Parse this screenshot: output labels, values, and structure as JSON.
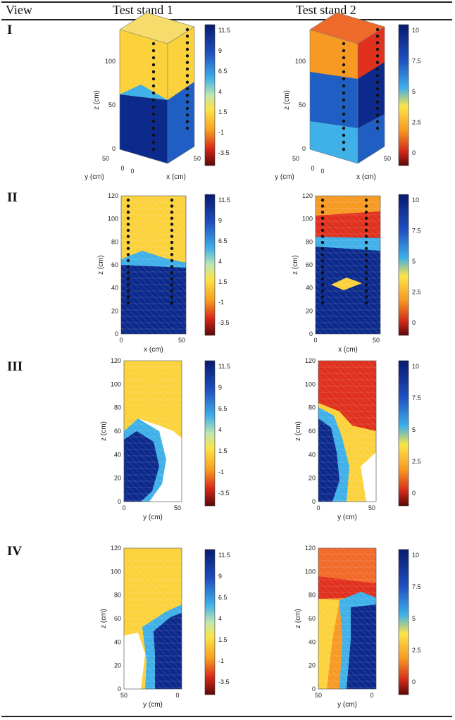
{
  "table": {
    "header": {
      "view": "View",
      "col1": "Test stand 1",
      "col2": "Test stand 2"
    },
    "rows": [
      {
        "label": "I",
        "stand1": {
          "z_label": "z (cm)",
          "y_label": "y (cm)",
          "x_label": "x (cm)",
          "z_ticks": [
            "100",
            "50",
            "0"
          ],
          "y_ticks": [
            "50",
            "0"
          ],
          "x_ticks": [
            "0",
            "50"
          ],
          "colorbar_ticks": [
            "11.5",
            "9",
            "6.5",
            "4",
            "1.5",
            "-1",
            "-3.5"
          ]
        },
        "stand2": {
          "z_label": "z (cm)",
          "y_label": "y (cm)",
          "x_label": "x (cm)",
          "z_ticks": [
            "100",
            "50",
            "0"
          ],
          "y_ticks": [
            "50",
            "0"
          ],
          "x_ticks": [
            "0",
            "50"
          ],
          "colorbar_ticks": [
            "10",
            "7.5",
            "5",
            "2.5",
            "0"
          ]
        }
      },
      {
        "label": "II",
        "stand1": {
          "z_label": "z (cm)",
          "x_label": "x (cm)",
          "z_ticks": [
            "120",
            "100",
            "80",
            "60",
            "40",
            "20",
            "0"
          ],
          "x_ticks": [
            "0",
            "50"
          ],
          "colorbar_ticks": [
            "11.5",
            "9",
            "6.5",
            "4",
            "1.5",
            "-1",
            "-3.5"
          ]
        },
        "stand2": {
          "z_label": "z (cm)",
          "x_label": "x (cm)",
          "z_ticks": [
            "120",
            "100",
            "80",
            "60",
            "40",
            "20",
            "0"
          ],
          "x_ticks": [
            "0",
            "50"
          ],
          "colorbar_ticks": [
            "10",
            "7.5",
            "5",
            "2.5",
            "0"
          ]
        }
      },
      {
        "label": "III",
        "stand1": {
          "z_label": "z (cm)",
          "x_label": "y (cm)",
          "z_ticks": [
            "120",
            "100",
            "80",
            "60",
            "40",
            "20",
            "0"
          ],
          "x_ticks": [
            "0",
            "50"
          ],
          "colorbar_ticks": [
            "11.5",
            "9",
            "6.5",
            "4",
            "1.5",
            "-1",
            "-3.5"
          ]
        },
        "stand2": {
          "z_label": "z (cm)",
          "x_label": "y (cm)",
          "z_ticks": [
            "120",
            "100",
            "80",
            "60",
            "40",
            "20",
            "0"
          ],
          "x_ticks": [
            "0",
            "50"
          ],
          "colorbar_ticks": [
            "10",
            "7.5",
            "5",
            "2.5",
            "0"
          ]
        }
      },
      {
        "label": "IV",
        "stand1": {
          "z_label": "z (cm)",
          "x_label": "y (cm)",
          "z_ticks": [
            "120",
            "100",
            "80",
            "60",
            "40",
            "20",
            "0"
          ],
          "x_ticks": [
            "50",
            "0"
          ],
          "colorbar_ticks": [
            "11.5",
            "9",
            "6.5",
            "4",
            "1.5",
            "-1",
            "-3.5"
          ]
        },
        "stand2": {
          "z_label": "z (cm)",
          "x_label": "y (cm)",
          "z_ticks": [
            "120",
            "100",
            "80",
            "60",
            "40",
            "20",
            "0"
          ],
          "x_ticks": [
            "50",
            "0"
          ],
          "colorbar_ticks": [
            "10",
            "7.5",
            "5",
            "2.5",
            "0"
          ]
        }
      }
    ]
  },
  "colors": {
    "deep_blue": "#0c2a8c",
    "blue": "#1f5fc4",
    "light_blue": "#3fb0e8",
    "yellow": "#fbd23c",
    "orange": "#f79a24",
    "red": "#e0301e",
    "dark_red": "#8a0f0f",
    "empty": "#ffffff"
  }
}
